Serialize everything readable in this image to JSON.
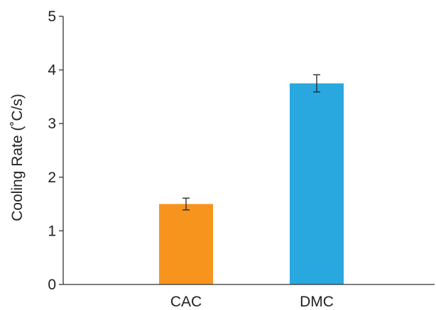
{
  "chart_data": {
    "type": "bar",
    "title": "",
    "xlabel": "",
    "ylabel": "Cooling Rate (˚C/s)",
    "ylim": [
      0,
      5
    ],
    "yticks": [
      0,
      1,
      2,
      3,
      4,
      5
    ],
    "categories": [
      "CAC",
      "DMC"
    ],
    "values": [
      1.5,
      3.75
    ],
    "errors": [
      0.11,
      0.16
    ],
    "colors": [
      "#F7941D",
      "#29A8E0"
    ],
    "grid": false,
    "legend": "none"
  }
}
